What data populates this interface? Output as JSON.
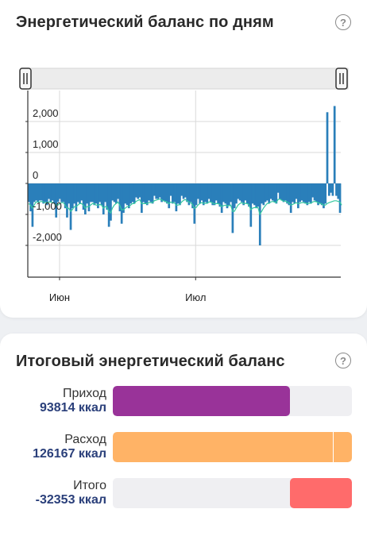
{
  "card_daily": {
    "title": "Энергетический баланс по дням",
    "help_icon": "?"
  },
  "card_total": {
    "title": "Итоговый энергетический баланс",
    "help_icon": "?",
    "rows": [
      {
        "name": "Приход",
        "value": "93814 ккал",
        "fill_fraction": 0.74,
        "color": "#993399"
      },
      {
        "name": "Расход",
        "value": "126167 ккал",
        "fill_fraction": 1.0,
        "marker_fraction": 0.92,
        "color": "#ffb366"
      },
      {
        "name": "Итого",
        "value": "-32353 ккал",
        "fill_fraction": 0.26,
        "fill_from": "right",
        "color": "#ff6b6b"
      }
    ]
  },
  "chart_data": {
    "type": "bar",
    "title": "",
    "xlabel": "",
    "ylabel": "",
    "ylim": [
      -3000,
      3000
    ],
    "yticks": [
      2000,
      1000,
      0,
      -1000,
      -2000
    ],
    "ytick_labels": [
      "2,000",
      "1,000",
      "0",
      "-1,000",
      "-2,000"
    ],
    "x_start": "2023-05-25",
    "x_end": "2023-08-02",
    "xticks": [
      "2023-06-01",
      "2023-07-01"
    ],
    "xtick_labels": [
      "Июн",
      "Июл"
    ],
    "grid": true,
    "bar_color": "#2a7fba",
    "line_color": "#35c9a0",
    "series": [
      {
        "kind": "bar",
        "values": [
          -600,
          -900,
          -1400,
          -600,
          -550,
          -600,
          -550,
          -550,
          -650,
          -600,
          -700,
          -500,
          -600,
          -550,
          -650,
          -1100,
          -600,
          -500,
          -600,
          -600,
          -800,
          -1100,
          -650,
          -1500,
          -800,
          -650,
          -900,
          -600,
          -650,
          -550,
          -850,
          -1000,
          -650,
          -900,
          -600,
          -600,
          -700,
          -650,
          -800,
          -600,
          -700,
          -1000,
          -600,
          -850,
          -1400,
          -1200,
          -550,
          -600,
          -650,
          -500,
          -900,
          -1300,
          -950,
          -650,
          -700,
          -800,
          -650,
          -600,
          -650,
          -450,
          -500,
          -450,
          -950,
          -600,
          -650,
          -700,
          -550,
          -600,
          -650,
          -400,
          -500,
          -500,
          -450,
          -600,
          -550,
          -600,
          -650,
          -800,
          -400,
          -650,
          -600,
          -900,
          -650,
          -700,
          -400,
          -500,
          -450,
          -600,
          -700,
          -600,
          -800,
          -1300,
          -700,
          -500,
          -650,
          -550,
          -700,
          -600,
          -650,
          -500,
          -600,
          -700,
          -700,
          -550,
          -650,
          -750,
          -950,
          -600,
          -650,
          -800,
          -700,
          -600,
          -1600,
          -800,
          -650,
          -500,
          -550,
          -600,
          -700,
          -550,
          -650,
          -750,
          -1400,
          -650,
          -700,
          -800,
          -750,
          -2000,
          -650,
          -700,
          -600,
          -550,
          -650,
          -500,
          -550,
          -600,
          -650,
          -300,
          -500,
          -550,
          -600,
          -550,
          -650,
          -700,
          -950,
          -600,
          -650,
          -500,
          -800,
          -600,
          -550,
          -600,
          -650,
          -700,
          -600,
          -650,
          -450,
          -550,
          -600,
          -700,
          -650,
          -700,
          -800,
          -650,
          2300,
          -400,
          -300,
          -400,
          2500,
          -400,
          -500,
          -950
        ]
      },
      {
        "kind": "line",
        "values": [
          -650,
          -700,
          -800,
          -700,
          -600,
          -600,
          -600,
          -580,
          -600,
          -620,
          -620,
          -600,
          -600,
          -610,
          -640,
          -700,
          -700,
          -650,
          -620,
          -620,
          -700,
          -800,
          -800,
          -900,
          -850,
          -750,
          -750,
          -700,
          -650,
          -650,
          -700,
          -800,
          -750,
          -750,
          -700,
          -650,
          -650,
          -700,
          -700,
          -680,
          -700,
          -800,
          -750,
          -750,
          -900,
          -950,
          -800,
          -700,
          -650,
          -600,
          -700,
          -850,
          -850,
          -800,
          -750,
          -750,
          -700,
          -650,
          -650,
          -580,
          -550,
          -520,
          -650,
          -650,
          -650,
          -650,
          -620,
          -620,
          -620,
          -560,
          -540,
          -520,
          -500,
          -530,
          -560,
          -580,
          -600,
          -650,
          -600,
          -620,
          -620,
          -700,
          -700,
          -680,
          -600,
          -550,
          -520,
          -560,
          -600,
          -620,
          -680,
          -800,
          -780,
          -700,
          -650,
          -620,
          -640,
          -640,
          -640,
          -600,
          -600,
          -630,
          -660,
          -650,
          -650,
          -680,
          -750,
          -720,
          -700,
          -720,
          -720,
          -700,
          -900,
          -900,
          -800,
          -700,
          -650,
          -620,
          -650,
          -640,
          -650,
          -680,
          -850,
          -800,
          -780,
          -780,
          -780,
          -1000,
          -900,
          -800,
          -720,
          -650,
          -640,
          -600,
          -580,
          -600,
          -620,
          -520,
          -500,
          -540,
          -570,
          -570,
          -600,
          -620,
          -700,
          -680,
          -650,
          -620,
          -650,
          -640,
          -620,
          -620,
          -630,
          -650,
          -640,
          -640,
          -600,
          -580,
          -590,
          -620,
          -640,
          -660,
          -700,
          -700,
          -650,
          -620,
          -600,
          -580,
          -560,
          -560,
          -580,
          -600,
          -700
        ]
      }
    ]
  }
}
